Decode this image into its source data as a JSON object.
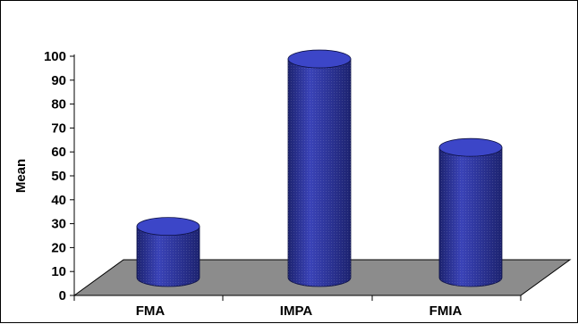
{
  "chart_data": {
    "type": "bar",
    "style": "3d-cylinder",
    "categories": [
      "FMA",
      "IMPA",
      "FMIA"
    ],
    "values": [
      27,
      97,
      60
    ],
    "title": "",
    "xlabel": "",
    "ylabel": "Mean",
    "ylim": [
      0,
      100
    ],
    "yticks": [
      "0",
      "10",
      "20",
      "30",
      "40",
      "50",
      "60",
      "70",
      "80",
      "90",
      "100"
    ],
    "grid": false,
    "legend": "none",
    "colors": {
      "bar": "#3a43b8",
      "bar_dark": "#1d2370",
      "bar_top": "#3c46c8",
      "floor": "#8c8c8c",
      "axis": "#000000"
    }
  }
}
